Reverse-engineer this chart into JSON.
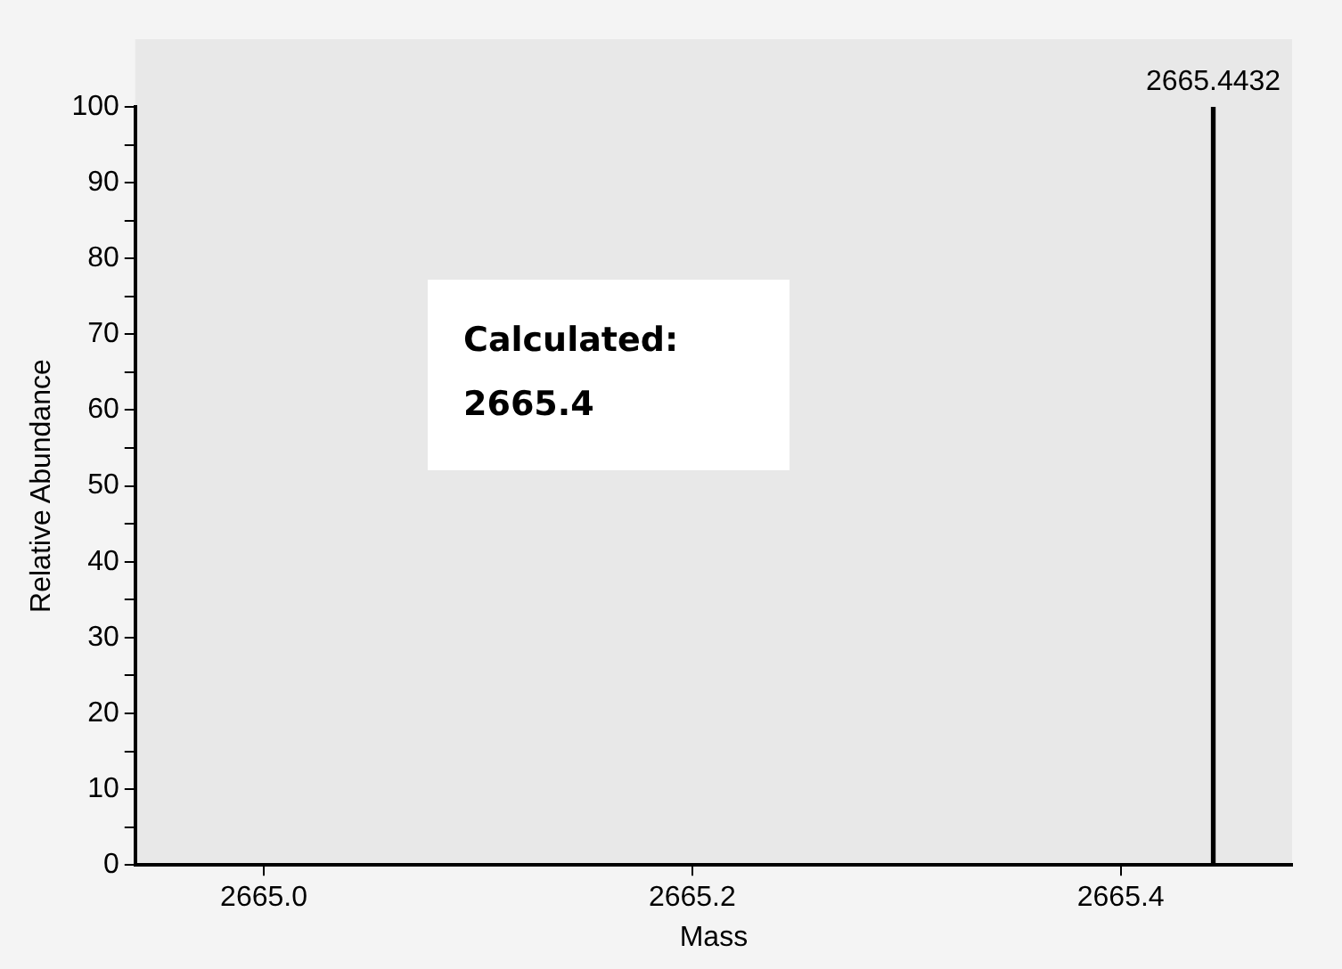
{
  "chart_data": {
    "type": "bar",
    "xlabel": "Mass",
    "ylabel": "Relative Abundance",
    "x": [
      2665.4432
    ],
    "values": [
      100
    ],
    "color": "#000000",
    "xlim": [
      2664.94,
      2665.48
    ],
    "xticks": [
      {
        "value": 2665.0,
        "label": "2665.0"
      },
      {
        "value": 2665.2,
        "label": "2665.2"
      },
      {
        "value": 2665.4,
        "label": "2665.4"
      }
    ],
    "ylim": [
      0,
      100
    ],
    "yticks": [
      0,
      {
        "value": 5,
        "label": null
      },
      10,
      {
        "value": 15,
        "label": null
      },
      20,
      {
        "value": 25,
        "label": null
      },
      30,
      {
        "value": 35,
        "label": null
      },
      40,
      {
        "value": 45,
        "label": null
      },
      50,
      {
        "value": 55,
        "label": null
      },
      60,
      {
        "value": 65,
        "label": null
      },
      70,
      {
        "value": 75,
        "label": null
      },
      80,
      {
        "value": 85,
        "label": null
      },
      90,
      {
        "value": 95,
        "label": null
      },
      100
    ],
    "annotations": [
      "Calculated:\n2665.4",
      {
        "text": "2665.4432",
        "x": 2665.4432,
        "y": 100
      }
    ],
    "grid": false,
    "legend": false
  }
}
